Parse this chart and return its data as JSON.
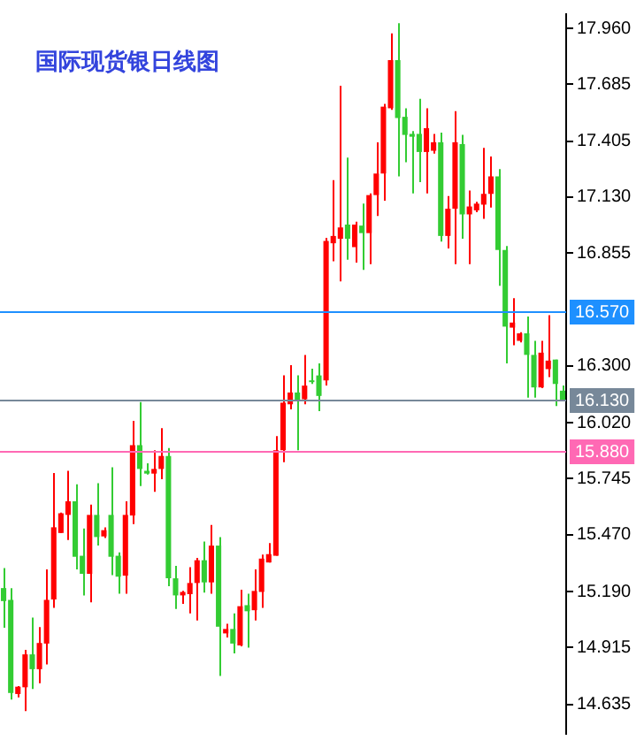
{
  "chart_data": {
    "type": "candlestick",
    "title": "国际现货银日线图",
    "categories": [
      null,
      null,
      null,
      null,
      null,
      null,
      null,
      null,
      null,
      null,
      null,
      null,
      null,
      null,
      null,
      null,
      null,
      null,
      null,
      null,
      null,
      null,
      null,
      null,
      null,
      null,
      null,
      null,
      null,
      null,
      null,
      null,
      null,
      null,
      null,
      null,
      null,
      null,
      null,
      null,
      null,
      null,
      null,
      null,
      null,
      null,
      null,
      null,
      null,
      null,
      null,
      null,
      null,
      null,
      null,
      null,
      null,
      null,
      null,
      null,
      null,
      null,
      null,
      null,
      null,
      null,
      null,
      null,
      null,
      null,
      null,
      null,
      null,
      null,
      null,
      null,
      null,
      null,
      null
    ],
    "ohlc": [
      [
        15.207,
        15.305,
        15.012,
        15.143
      ],
      [
        15.149,
        15.207,
        14.658,
        14.691
      ],
      [
        14.686,
        14.725,
        14.669,
        14.722
      ],
      [
        14.719,
        14.903,
        14.602,
        14.881
      ],
      [
        14.881,
        15.062,
        14.711,
        14.808
      ],
      [
        14.808,
        15.015,
        14.739,
        14.937
      ],
      [
        14.934,
        15.299,
        14.831,
        15.149
      ],
      [
        15.151,
        15.773,
        15.11,
        15.506
      ],
      [
        15.478,
        15.578,
        15.478,
        15.575
      ],
      [
        15.567,
        15.784,
        15.444,
        15.634
      ],
      [
        15.634,
        15.718,
        15.299,
        15.361
      ],
      [
        15.366,
        15.5,
        15.171,
        15.277
      ],
      [
        15.277,
        15.617,
        15.137,
        15.567
      ],
      [
        15.567,
        15.723,
        15.416,
        15.458
      ],
      [
        15.461,
        15.506,
        15.453,
        15.492
      ],
      [
        15.567,
        15.801,
        15.271,
        15.361
      ],
      [
        15.366,
        15.383,
        15.179,
        15.263
      ],
      [
        15.268,
        15.634,
        15.179,
        15.567
      ],
      [
        15.564,
        16.03,
        15.522,
        15.91
      ],
      [
        15.91,
        16.122,
        15.709,
        15.793
      ],
      [
        15.784,
        15.821,
        15.765,
        15.77
      ],
      [
        15.77,
        15.885,
        15.681,
        15.793
      ],
      [
        15.793,
        15.994,
        15.743,
        15.857
      ],
      [
        15.857,
        15.896,
        15.216,
        15.255
      ],
      [
        15.255,
        15.316,
        15.104,
        15.171
      ],
      [
        15.171,
        15.193,
        15.129,
        15.188
      ],
      [
        15.177,
        15.31,
        15.082,
        15.232
      ],
      [
        15.232,
        15.355,
        15.048,
        15.344
      ],
      [
        15.344,
        15.436,
        15.185,
        15.235
      ],
      [
        15.235,
        15.517,
        15.179,
        15.416
      ],
      [
        15.416,
        15.458,
        14.775,
        15.017
      ],
      [
        14.984,
        15.031,
        14.964,
        15.006
      ],
      [
        15.006,
        15.082,
        14.886,
        14.934
      ],
      [
        14.925,
        15.199,
        14.92,
        15.118
      ],
      [
        15.123,
        15.179,
        14.914,
        15.093
      ],
      [
        15.098,
        15.299,
        15.048,
        15.193
      ],
      [
        15.188,
        15.372,
        15.11,
        15.352
      ],
      [
        15.333,
        15.428,
        15.333,
        15.374
      ],
      [
        15.366,
        15.955,
        15.366,
        15.885
      ],
      [
        15.885,
        16.253,
        15.826,
        16.119
      ],
      [
        16.111,
        16.303,
        16.086,
        16.169
      ],
      [
        16.169,
        16.253,
        15.885,
        16.127
      ],
      [
        16.136,
        16.353,
        16.111,
        16.203
      ],
      [
        16.228,
        16.286,
        16.211,
        16.22
      ],
      [
        16.253,
        16.312,
        16.077,
        16.152
      ],
      [
        16.228,
        16.93,
        16.203,
        16.914
      ],
      [
        16.903,
        17.213,
        16.814,
        16.939
      ],
      [
        16.925,
        17.678,
        16.716,
        16.981
      ],
      [
        16.995,
        17.324,
        16.822,
        16.925
      ],
      [
        16.884,
        17.009,
        16.808,
        16.995
      ],
      [
        16.99,
        17.098,
        16.772,
        16.953
      ],
      [
        16.953,
        17.148,
        16.8,
        17.14
      ],
      [
        17.14,
        17.399,
        17.037,
        17.246
      ],
      [
        17.246,
        17.589,
        17.112,
        17.575
      ],
      [
        17.567,
        17.935,
        17.559,
        17.804
      ],
      [
        17.804,
        17.985,
        17.232,
        17.519
      ],
      [
        17.525,
        17.567,
        17.302,
        17.436
      ],
      [
        17.441,
        17.455,
        17.148,
        17.427
      ],
      [
        17.441,
        17.614,
        17.204,
        17.352
      ],
      [
        17.352,
        17.567,
        17.148,
        17.469
      ],
      [
        17.358,
        17.441,
        17.344,
        17.4
      ],
      [
        17.4,
        17.447,
        16.911,
        16.939
      ],
      [
        16.939,
        17.135,
        16.878,
        17.073
      ],
      [
        17.073,
        17.553,
        16.8,
        17.4
      ],
      [
        17.391,
        17.436,
        16.925,
        17.045
      ],
      [
        17.045,
        17.162,
        16.8,
        17.084
      ],
      [
        17.065,
        17.107,
        17.056,
        17.098
      ],
      [
        17.093,
        17.372,
        17.023,
        17.146
      ],
      [
        17.146,
        17.33,
        17.079,
        17.232
      ],
      [
        17.232,
        17.268,
        16.694,
        16.87
      ],
      [
        16.87,
        16.889,
        16.312,
        16.493
      ],
      [
        16.488,
        16.633,
        16.401,
        16.513
      ],
      [
        16.423,
        16.465,
        16.415,
        16.46
      ],
      [
        16.46,
        16.543,
        16.144,
        16.354
      ],
      [
        16.354,
        16.423,
        16.144,
        16.194
      ],
      [
        16.194,
        16.423,
        16.19,
        16.365
      ],
      [
        16.284,
        16.549,
        16.245,
        16.326
      ],
      [
        16.331,
        16.331,
        16.102,
        16.211
      ],
      [
        16.178,
        16.203,
        16.127,
        16.127
      ]
    ],
    "colors": [
      "#33cc33",
      "#33cc33",
      "#ff0000",
      "#ff0000",
      "#33cc33",
      "#ff0000",
      "#ff0000",
      "#ff0000",
      "#ff0000",
      "#ff0000",
      "#33cc33",
      "#33cc33",
      "#ff0000",
      "#33cc33",
      "#ff0000",
      "#33cc33",
      "#33cc33",
      "#ff0000",
      "#ff0000",
      "#33cc33",
      "#33cc33",
      "#ff0000",
      "#ff0000",
      "#33cc33",
      "#33cc33",
      "#ff0000",
      "#ff0000",
      "#ff0000",
      "#33cc33",
      "#ff0000",
      "#33cc33",
      "#ff0000",
      "#33cc33",
      "#ff0000",
      "#33cc33",
      "#ff0000",
      "#ff0000",
      "#ff0000",
      "#ff0000",
      "#ff0000",
      "#ff0000",
      "#33cc33",
      "#ff0000",
      "#33cc33",
      "#33cc33",
      "#ff0000",
      "#ff0000",
      "#ff0000",
      "#33cc33",
      "#ff0000",
      "#33cc33",
      "#ff0000",
      "#ff0000",
      "#ff0000",
      "#ff0000",
      "#33cc33",
      "#33cc33",
      "#33cc33",
      "#33cc33",
      "#ff0000",
      "#ff0000",
      "#33cc33",
      "#ff0000",
      "#ff0000",
      "#33cc33",
      "#ff0000",
      "#ff0000",
      "#ff0000",
      "#ff0000",
      "#33cc33",
      "#33cc33",
      "#ff0000",
      "#ff0000",
      "#33cc33",
      "#33cc33",
      "#ff0000",
      "#ff0000",
      "#33cc33",
      "#33cc33"
    ],
    "ylim": [
      14.49,
      18.03
    ],
    "yticks": [
      {
        "value": 17.96,
        "label": "17.960"
      },
      {
        "value": 17.685,
        "label": "17.685"
      },
      {
        "value": 17.405,
        "label": "17.405"
      },
      {
        "value": 17.13,
        "label": "17.130"
      },
      {
        "value": 16.855,
        "label": "16.855"
      },
      {
        "value": 16.3,
        "label": "16.300"
      },
      {
        "value": 16.02,
        "label": "16.020"
      },
      {
        "value": 15.745,
        "label": "15.745"
      },
      {
        "value": 15.47,
        "label": "15.470"
      },
      {
        "value": 15.19,
        "label": "15.190"
      },
      {
        "value": 14.915,
        "label": "14.915"
      },
      {
        "value": 14.635,
        "label": "14.635"
      }
    ],
    "ref_lines": [
      {
        "axis": "y",
        "value": 16.57,
        "label": "16.570",
        "color": "#1e90ff"
      },
      {
        "axis": "y",
        "value": 16.13,
        "label": "16.130",
        "color": "#778899"
      },
      {
        "axis": "y",
        "value": 15.88,
        "label": "15.880",
        "color": "#ff69b4"
      }
    ],
    "tick_labels": "y",
    "grid": false,
    "legend": false
  }
}
